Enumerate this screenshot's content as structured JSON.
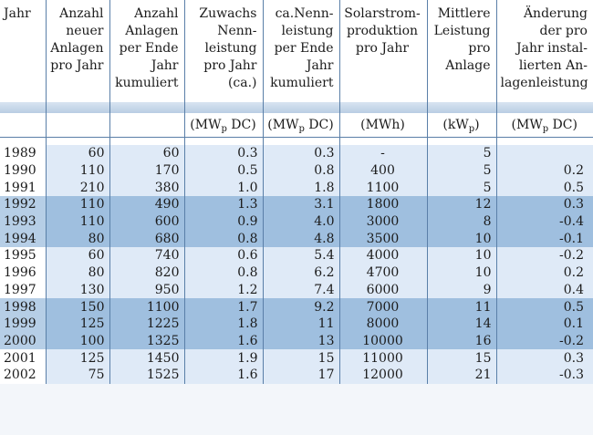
{
  "headers": [
    [
      "Jahr"
    ],
    [
      "Anzahl",
      "neuer",
      "Anlagen",
      "pro Jahr"
    ],
    [
      "Anzahl",
      "Anlagen",
      "per Ende",
      "Jahr",
      "kumuliert"
    ],
    [
      "Zuwachs",
      "Nenn-",
      "leistung",
      "pro Jahr",
      "(ca.)"
    ],
    [
      "ca.Nenn-",
      "leistung",
      "per Ende",
      "Jahr",
      "kumuliert"
    ],
    [
      "Solarstrom-",
      "produktion",
      "pro Jahr"
    ],
    [
      "Mittlere",
      "Leistung",
      "pro",
      "Anlage"
    ],
    [
      "Änderung",
      "der pro",
      "Jahr instal-",
      "lierten An-",
      "lagenleistung"
    ]
  ],
  "units": {
    "u3": {
      "main": "(MW",
      "sub": "p",
      "tail": " DC)"
    },
    "u4": {
      "main": "(MW",
      "sub": "p",
      "tail": " DC)"
    },
    "u5": "(MWh)",
    "u6": {
      "main": "(kW",
      "sub": "p",
      "tail": ")"
    },
    "u7": {
      "main": "(MW",
      "sub": "p",
      "tail": " DC)"
    }
  },
  "rows": [
    [
      "1989",
      "60",
      "60",
      "0.3",
      "0.3",
      "-",
      "5",
      ""
    ],
    [
      "1990",
      "110",
      "170",
      "0.5",
      "0.8",
      "400",
      "5",
      "0.2"
    ],
    [
      "1991",
      "210",
      "380",
      "1.0",
      "1.8",
      "1100",
      "5",
      "0.5"
    ],
    [
      "1992",
      "110",
      "490",
      "1.3",
      "3.1",
      "1800",
      "12",
      "0.3"
    ],
    [
      "1993",
      "110",
      "600",
      "0.9",
      "4.0",
      "3000",
      "8",
      "-0.4"
    ],
    [
      "1994",
      "80",
      "680",
      "0.8",
      "4.8",
      "3500",
      "10",
      "-0.1"
    ],
    [
      "1995",
      "60",
      "740",
      "0.6",
      "5.4",
      "4000",
      "10",
      "-0.2"
    ],
    [
      "1996",
      "80",
      "820",
      "0.8",
      "6.2",
      "4700",
      "10",
      "0.2"
    ],
    [
      "1997",
      "130",
      "950",
      "1.2",
      "7.4",
      "6000",
      "9",
      "0.4"
    ],
    [
      "1998",
      "150",
      "1100",
      "1.7",
      "9.2",
      "7000",
      "11",
      "0.5"
    ],
    [
      "1999",
      "125",
      "1225",
      "1.8",
      "11",
      "8000",
      "14",
      "0.1"
    ],
    [
      "2000",
      "100",
      "1325",
      "1.6",
      "13",
      "10000",
      "16",
      "-0.2"
    ],
    [
      "2001",
      "125",
      "1450",
      "1.9",
      "15",
      "11000",
      "15",
      "0.3"
    ],
    [
      "2002",
      "75",
      "1525",
      "1.6",
      "17",
      "12000",
      "21",
      "-0.3"
    ]
  ],
  "row_shading": [
    "light",
    "light",
    "light",
    "dark",
    "dark",
    "dark",
    "light",
    "light",
    "light",
    "dark",
    "dark",
    "dark",
    "light",
    "light"
  ],
  "colors": {
    "light_band": "#dfeaf7",
    "dark_band": "#9fbfdf",
    "rule": "#5a7fa8"
  }
}
